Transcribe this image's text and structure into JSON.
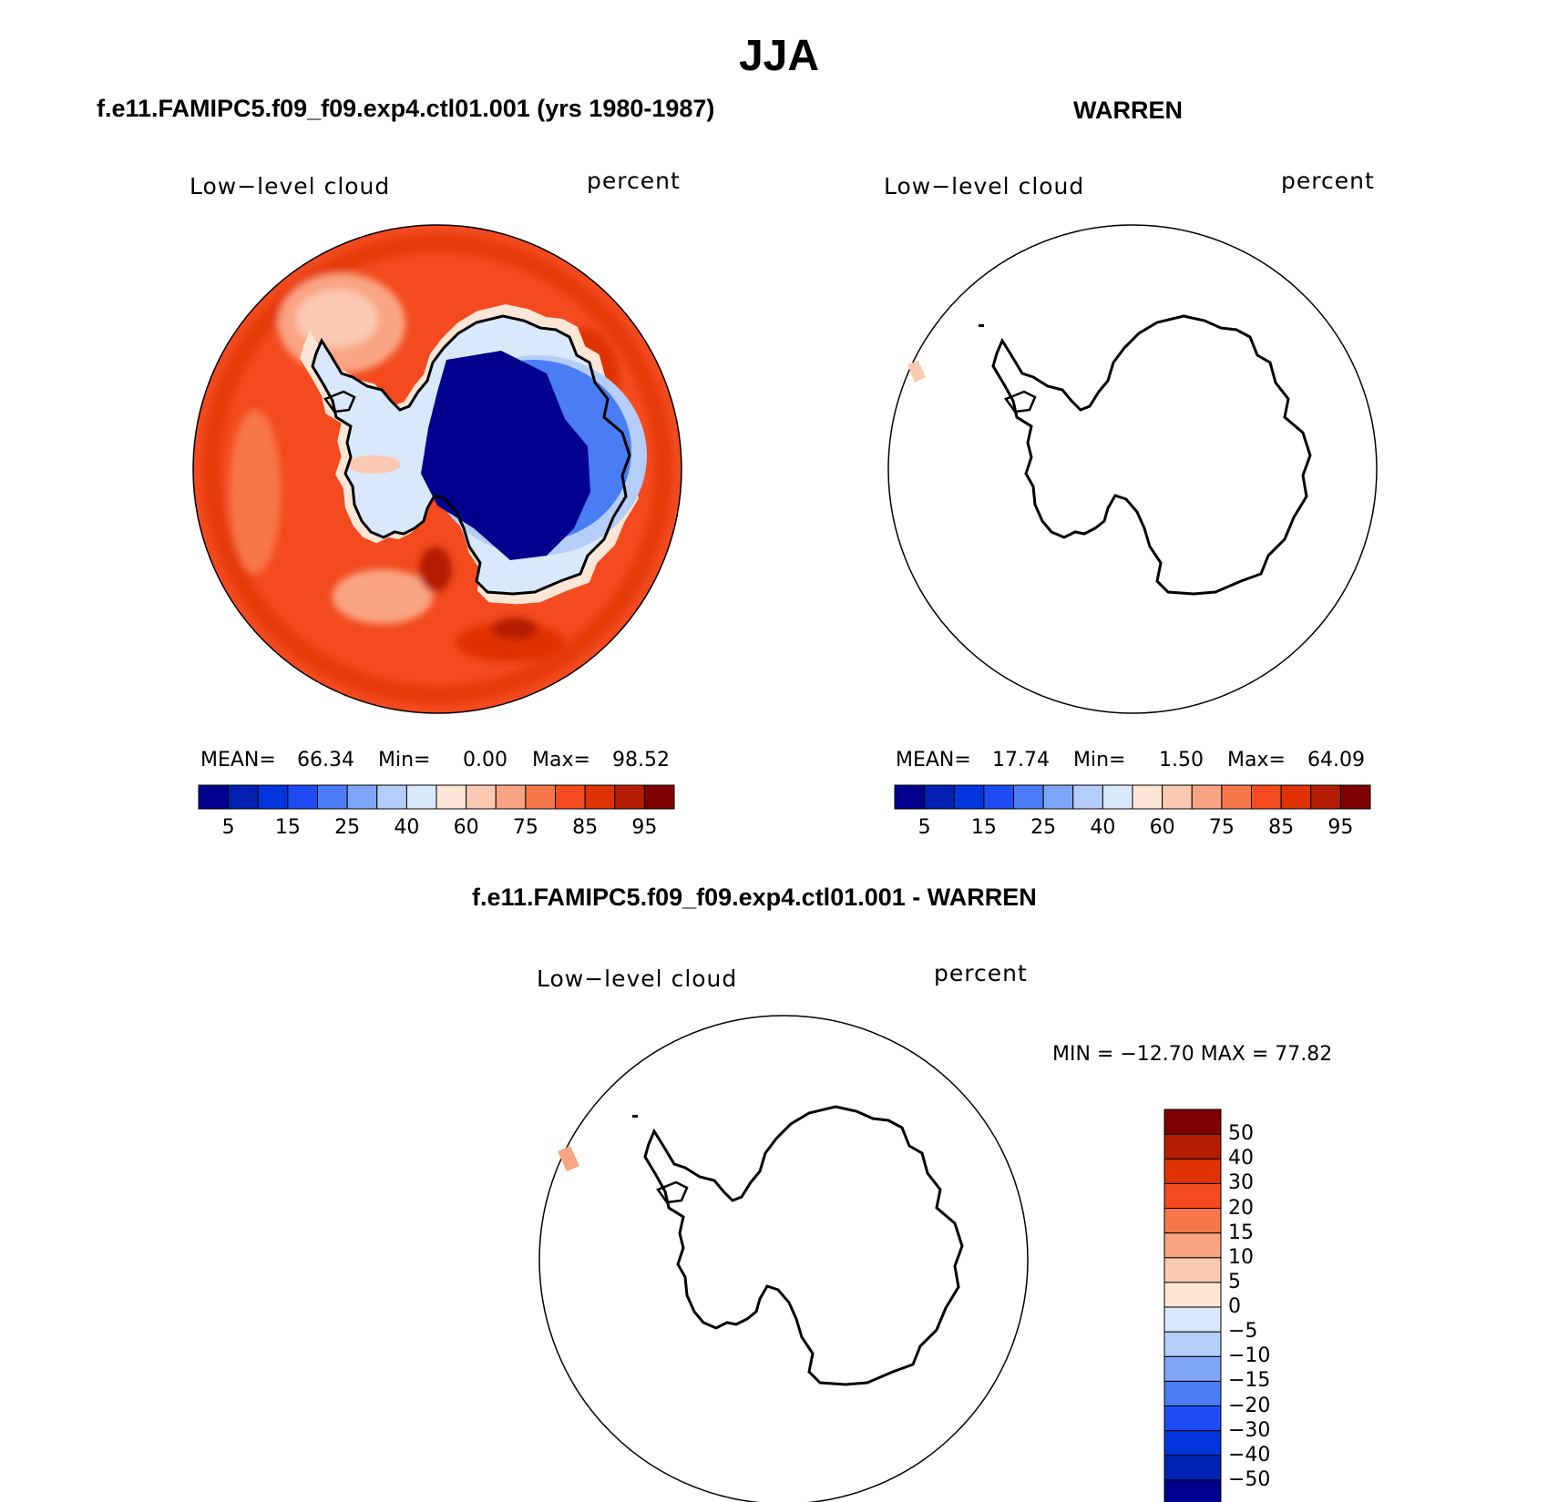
{
  "title": "JJA",
  "colors": {
    "panel_scale": [
      "#00008f",
      "#0022b4",
      "#0034dc",
      "#1f4cf2",
      "#4a7cf5",
      "#7ea5f7",
      "#b4cdf9",
      "#d9e8fb",
      "#fde6d6",
      "#fcc9b2",
      "#f9a482",
      "#f7774a",
      "#f34b1f",
      "#e03303",
      "#b51d02",
      "#7e0001"
    ],
    "diff_scale": [
      "#00008f",
      "#0022b4",
      "#0034dc",
      "#1f4cf2",
      "#4a7cf5",
      "#7ea5f7",
      "#b4cdf9",
      "#d9e8fb",
      "#fde6d6",
      "#fcc9b2",
      "#f9a482",
      "#f7774a",
      "#f34b1f",
      "#e03303",
      "#b51d02",
      "#7e0001"
    ]
  },
  "panels": [
    {
      "title": "f.e11.FAMIPC5.f09_f09.exp4.ctl01.001 (yrs 1980-1987)",
      "variable": "Low−level cloud",
      "units": "percent",
      "mean_label": "MEAN=",
      "mean": "66.34",
      "min_label": "Min=",
      "min": "0.00",
      "max_label": "Max=",
      "max": "98.52",
      "ticks": [
        "5",
        "15",
        "25",
        "40",
        "60",
        "75",
        "85",
        "95"
      ]
    },
    {
      "title": "WARREN",
      "variable": "Low−level cloud",
      "units": "percent",
      "mean_label": "MEAN=",
      "mean": "17.74",
      "min_label": "Min=",
      "min": "1.50",
      "max_label": "Max=",
      "max": "64.09",
      "ticks": [
        "5",
        "15",
        "25",
        "40",
        "60",
        "75",
        "85",
        "95"
      ]
    },
    {
      "title": "f.e11.FAMIPC5.f09_f09.exp4.ctl01.001 - WARREN",
      "variable": "Low−level cloud",
      "units": "percent",
      "minmax_text": "MIN = −12.70 MAX =   77.82",
      "ticks": [
        "50",
        "40",
        "30",
        "20",
        "15",
        "10",
        "5",
        "0",
        "−5",
        "−10",
        "−15",
        "−20",
        "−30",
        "−40",
        "−50"
      ]
    }
  ]
}
